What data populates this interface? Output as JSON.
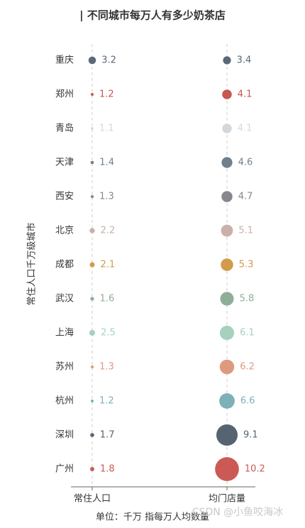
{
  "chart_data": {
    "type": "dot",
    "title": "| 不同城市每万人有多少奶茶店",
    "y_label": "常住人口千万级城市",
    "footnote": "单位：千万   指每万人均数量",
    "watermark": "CSDN @小鱼咬海冰",
    "categories": [
      "重庆",
      "郑州",
      "青岛",
      "天津",
      "西安",
      "北京",
      "成都",
      "武汉",
      "上海",
      "苏州",
      "杭州",
      "深圳",
      "广州"
    ],
    "colors": [
      "#5a6978",
      "#c9554f",
      "#d3d8dd",
      "#6f7f8c",
      "#86878d",
      "#c9b0aa",
      "#d29a4a",
      "#8fae97",
      "#a6d1bf",
      "#de9a80",
      "#7eb0b8",
      "#566472",
      "#cb5a55"
    ],
    "series": [
      {
        "name": "常住人口",
        "values": [
          3.2,
          1.2,
          1.1,
          1.4,
          1.3,
          2.2,
          2.1,
          1.6,
          2.5,
          1.3,
          1.2,
          1.7,
          1.8
        ]
      },
      {
        "name": "均门店量",
        "values": [
          3.4,
          4.1,
          4.1,
          4.6,
          4.7,
          5.1,
          5.3,
          5.8,
          6.1,
          6.2,
          6.6,
          9.1,
          10.2
        ]
      }
    ]
  }
}
